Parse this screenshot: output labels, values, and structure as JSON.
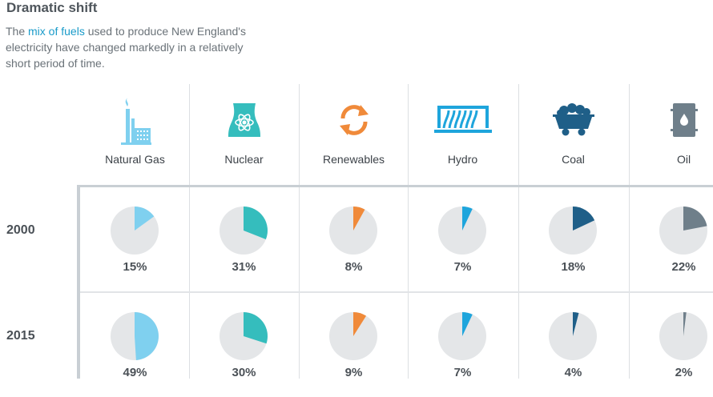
{
  "header": {
    "title": "Dramatic shift",
    "desc_prefix": "The ",
    "desc_link": "mix of fuels",
    "desc_suffix": " used to produce New England's electricity have changed markedly in a relatively short period of time."
  },
  "chart_data": {
    "type": "pie",
    "categories": [
      "Natural Gas",
      "Nuclear",
      "Renewables",
      "Hydro",
      "Coal",
      "Oil"
    ],
    "icons": [
      "gas-plant-icon",
      "nuclear-plant-icon",
      "recycle-arrows-icon",
      "dam-icon",
      "coal-cart-icon",
      "oil-barrel-icon"
    ],
    "colors": [
      "#7fd0ef",
      "#35bdbd",
      "#f08a3a",
      "#1ea5dc",
      "#1f5f88",
      "#6f7f8a"
    ],
    "background_color": "#e4e6e8",
    "series": [
      {
        "name": "2000",
        "values": [
          15,
          31,
          8,
          7,
          18,
          22
        ],
        "labels": [
          "15%",
          "31%",
          "8%",
          "7%",
          "18%",
          "22%"
        ]
      },
      {
        "name": "2015",
        "values": [
          49,
          30,
          9,
          7,
          4,
          2
        ],
        "labels": [
          "49%",
          "30%",
          "9%",
          "7%",
          "4%",
          "2%"
        ]
      }
    ]
  }
}
